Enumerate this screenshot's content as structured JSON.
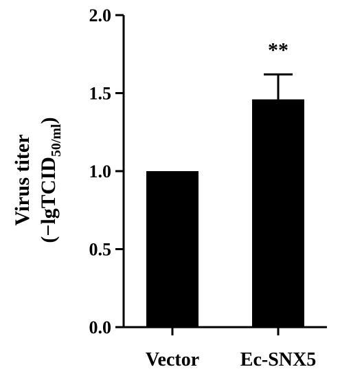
{
  "chart_data": {
    "type": "bar",
    "categories": [
      "Vector",
      "Ec-SNX5"
    ],
    "values": [
      1.0,
      1.46
    ],
    "errors": [
      0,
      0.16
    ],
    "significance": [
      "",
      "**"
    ],
    "ylabel_line1": "Virus titer",
    "ylabel_line2_main": "(−lgTCID",
    "ylabel_line2_sub": "50/ml",
    "ylabel_line2_end": ")",
    "yticks": [
      0.0,
      0.5,
      1.0,
      1.5,
      2.0
    ],
    "ytick_labels": [
      "0.0",
      "0.5",
      "1.0",
      "1.5",
      "2.0"
    ],
    "ylim": [
      0,
      2.0
    ],
    "grid": false,
    "bar_color": "#000000"
  }
}
